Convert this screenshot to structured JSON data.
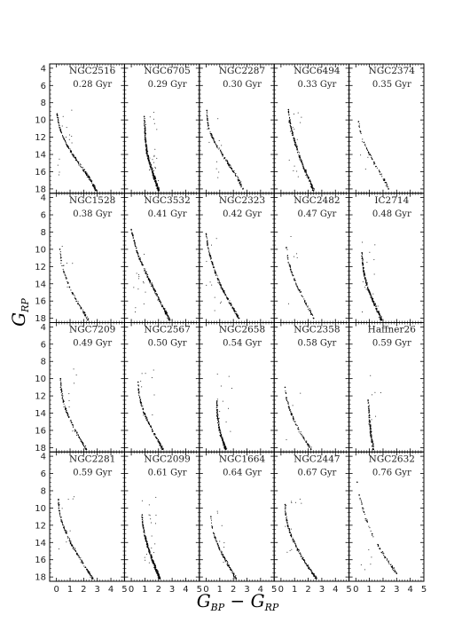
{
  "chart_data": {
    "type": "scatter",
    "xlabel": "G_BP − G_RP",
    "ylabel": "G_RP",
    "xlim": [
      -0.5,
      5
    ],
    "ylim": [
      18.5,
      3.5
    ],
    "y_inverted": true,
    "xticks": [
      0,
      1,
      2,
      3,
      4,
      5
    ],
    "yticks": [
      4,
      6,
      8,
      10,
      12,
      14,
      16,
      18
    ],
    "grid": false,
    "legend": "none",
    "point_color": "#000000",
    "panels": [
      {
        "name": "NGC2516",
        "age": "0.28 Gyr",
        "density": 220,
        "points": [
          [
            0.05,
            9.3
          ],
          [
            0.15,
            10.3
          ],
          [
            0.3,
            11.2
          ],
          [
            0.55,
            12.2
          ],
          [
            0.85,
            13.1
          ],
          [
            1.2,
            14.0
          ],
          [
            1.6,
            14.9
          ],
          [
            2.0,
            15.8
          ],
          [
            2.4,
            16.7
          ],
          [
            2.7,
            17.5
          ],
          [
            2.9,
            18.2
          ]
        ]
      },
      {
        "name": "NGC6705",
        "age": "0.29 Gyr",
        "density": 340,
        "points": [
          [
            0.95,
            9.6
          ],
          [
            1.0,
            11.0
          ],
          [
            1.05,
            12.5
          ],
          [
            1.15,
            13.8
          ],
          [
            1.35,
            15.0
          ],
          [
            1.6,
            16.2
          ],
          [
            1.8,
            17.2
          ],
          [
            2.0,
            18.2
          ]
        ]
      },
      {
        "name": "NGC2287",
        "age": "0.30 Gyr",
        "density": 160,
        "points": [
          [
            0.05,
            8.9
          ],
          [
            0.1,
            10.0
          ],
          [
            0.2,
            11.0
          ],
          [
            0.45,
            12.0
          ],
          [
            0.8,
            13.0
          ],
          [
            1.2,
            14.0
          ],
          [
            1.6,
            15.0
          ],
          [
            2.0,
            16.0
          ],
          [
            2.4,
            17.0
          ],
          [
            2.7,
            18.0
          ]
        ]
      },
      {
        "name": "NGC6494",
        "age": "0.33 Gyr",
        "density": 240,
        "points": [
          [
            0.55,
            8.8
          ],
          [
            0.65,
            10.2
          ],
          [
            0.85,
            11.6
          ],
          [
            1.1,
            13.0
          ],
          [
            1.4,
            14.4
          ],
          [
            1.75,
            15.8
          ],
          [
            2.1,
            17.0
          ],
          [
            2.4,
            18.2
          ]
        ]
      },
      {
        "name": "NGC2374",
        "age": "0.35 Gyr",
        "density": 70,
        "points": [
          [
            0.2,
            10.2
          ],
          [
            0.35,
            11.4
          ],
          [
            0.6,
            12.6
          ],
          [
            0.95,
            13.8
          ],
          [
            1.35,
            15.0
          ],
          [
            1.75,
            16.0
          ],
          [
            2.1,
            17.0
          ],
          [
            2.4,
            18.0
          ]
        ]
      },
      {
        "name": "NGC1528",
        "age": "0.38 Gyr",
        "density": 90,
        "points": [
          [
            0.25,
            10.0
          ],
          [
            0.35,
            11.3
          ],
          [
            0.55,
            12.6
          ],
          [
            0.85,
            13.9
          ],
          [
            1.2,
            15.1
          ],
          [
            1.6,
            16.3
          ],
          [
            2.0,
            17.3
          ],
          [
            2.3,
            18.2
          ]
        ]
      },
      {
        "name": "NGC3532",
        "age": "0.41 Gyr",
        "density": 260,
        "points": [
          [
            0.0,
            7.7
          ],
          [
            0.2,
            9.0
          ],
          [
            0.45,
            10.4
          ],
          [
            0.8,
            11.8
          ],
          [
            1.2,
            13.2
          ],
          [
            1.65,
            14.6
          ],
          [
            2.1,
            16.0
          ],
          [
            2.5,
            17.2
          ],
          [
            2.8,
            18.2
          ]
        ]
      },
      {
        "name": "NGC2323",
        "age": "0.42 Gyr",
        "density": 200,
        "points": [
          [
            0.0,
            8.2
          ],
          [
            0.1,
            9.5
          ],
          [
            0.3,
            10.8
          ],
          [
            0.55,
            12.1
          ],
          [
            0.85,
            13.4
          ],
          [
            1.2,
            14.6
          ],
          [
            1.6,
            15.8
          ],
          [
            2.0,
            16.9
          ],
          [
            2.4,
            18.0
          ]
        ]
      },
      {
        "name": "NGC2482",
        "age": "0.47 Gyr",
        "density": 90,
        "points": [
          [
            0.4,
            9.8
          ],
          [
            0.5,
            11.0
          ],
          [
            0.7,
            12.3
          ],
          [
            1.0,
            13.6
          ],
          [
            1.35,
            14.8
          ],
          [
            1.75,
            16.0
          ],
          [
            2.1,
            17.1
          ],
          [
            2.4,
            18.0
          ]
        ]
      },
      {
        "name": "IC2714",
        "age": "0.48 Gyr",
        "density": 250,
        "points": [
          [
            0.45,
            10.4
          ],
          [
            0.5,
            11.6
          ],
          [
            0.6,
            12.8
          ],
          [
            0.8,
            14.0
          ],
          [
            1.05,
            15.2
          ],
          [
            1.35,
            16.3
          ],
          [
            1.65,
            17.3
          ],
          [
            1.9,
            18.2
          ]
        ]
      },
      {
        "name": "NGC7209",
        "age": "0.49 Gyr",
        "density": 130,
        "points": [
          [
            0.3,
            10.0
          ],
          [
            0.35,
            11.3
          ],
          [
            0.5,
            12.6
          ],
          [
            0.75,
            13.9
          ],
          [
            1.1,
            15.1
          ],
          [
            1.5,
            16.3
          ],
          [
            1.9,
            17.4
          ],
          [
            2.2,
            18.2
          ]
        ]
      },
      {
        "name": "NGC2567",
        "age": "0.50 Gyr",
        "density": 150,
        "points": [
          [
            0.5,
            10.4
          ],
          [
            0.55,
            11.6
          ],
          [
            0.7,
            12.8
          ],
          [
            0.95,
            14.0
          ],
          [
            1.3,
            15.2
          ],
          [
            1.7,
            16.4
          ],
          [
            2.05,
            17.4
          ],
          [
            2.3,
            18.2
          ]
        ]
      },
      {
        "name": "NGC2658",
        "age": "0.54 Gyr",
        "density": 180,
        "points": [
          [
            0.8,
            12.6
          ],
          [
            0.8,
            13.6
          ],
          [
            0.85,
            14.6
          ],
          [
            0.95,
            15.6
          ],
          [
            1.1,
            16.6
          ],
          [
            1.3,
            17.5
          ],
          [
            1.45,
            18.2
          ]
        ]
      },
      {
        "name": "NGC2358",
        "age": "0.58 Gyr",
        "density": 90,
        "points": [
          [
            0.3,
            11.0
          ],
          [
            0.4,
            12.2
          ],
          [
            0.6,
            13.4
          ],
          [
            0.9,
            14.6
          ],
          [
            1.25,
            15.8
          ],
          [
            1.65,
            16.8
          ],
          [
            2.0,
            17.7
          ],
          [
            2.2,
            18.2
          ]
        ]
      },
      {
        "name": "Haffner26",
        "age": "0.59 Gyr",
        "density": 120,
        "points": [
          [
            0.9,
            12.5
          ],
          [
            0.95,
            13.5
          ],
          [
            1.0,
            14.5
          ],
          [
            1.05,
            15.5
          ],
          [
            1.1,
            16.5
          ],
          [
            1.2,
            17.4
          ],
          [
            1.3,
            18.2
          ]
        ]
      },
      {
        "name": "NGC2281",
        "age": "0.59 Gyr",
        "density": 170,
        "points": [
          [
            0.15,
            9.0
          ],
          [
            0.2,
            10.3
          ],
          [
            0.4,
            11.6
          ],
          [
            0.7,
            12.9
          ],
          [
            1.05,
            14.1
          ],
          [
            1.5,
            15.3
          ],
          [
            1.95,
            16.4
          ],
          [
            2.35,
            17.4
          ],
          [
            2.65,
            18.2
          ]
        ]
      },
      {
        "name": "NGC2099",
        "age": "0.61 Gyr",
        "density": 320,
        "points": [
          [
            0.8,
            10.8
          ],
          [
            0.85,
            12.0
          ],
          [
            1.0,
            13.2
          ],
          [
            1.2,
            14.4
          ],
          [
            1.45,
            15.6
          ],
          [
            1.7,
            16.7
          ],
          [
            1.95,
            17.6
          ],
          [
            2.1,
            18.2
          ]
        ]
      },
      {
        "name": "NGC1664",
        "age": "0.64 Gyr",
        "density": 130,
        "points": [
          [
            0.35,
            11.0
          ],
          [
            0.45,
            12.2
          ],
          [
            0.65,
            13.4
          ],
          [
            0.95,
            14.6
          ],
          [
            1.3,
            15.7
          ],
          [
            1.65,
            16.7
          ],
          [
            2.0,
            17.6
          ],
          [
            2.2,
            18.2
          ]
        ]
      },
      {
        "name": "NGC2447",
        "age": "0.67 Gyr",
        "density": 200,
        "points": [
          [
            0.3,
            9.6
          ],
          [
            0.35,
            10.8
          ],
          [
            0.5,
            12.0
          ],
          [
            0.75,
            13.2
          ],
          [
            1.1,
            14.4
          ],
          [
            1.5,
            15.6
          ],
          [
            1.95,
            16.7
          ],
          [
            2.35,
            17.6
          ],
          [
            2.6,
            18.2
          ]
        ]
      },
      {
        "name": "NGC2632",
        "age": "0.76 Gyr",
        "density": 80,
        "points": [
          [
            0.1,
            7.0
          ],
          [
            0.25,
            8.5
          ],
          [
            0.5,
            10.0
          ],
          [
            0.8,
            11.5
          ],
          [
            1.2,
            13.0
          ],
          [
            1.65,
            14.4
          ],
          [
            2.15,
            15.7
          ],
          [
            2.65,
            16.8
          ],
          [
            3.0,
            17.6
          ]
        ]
      }
    ]
  }
}
